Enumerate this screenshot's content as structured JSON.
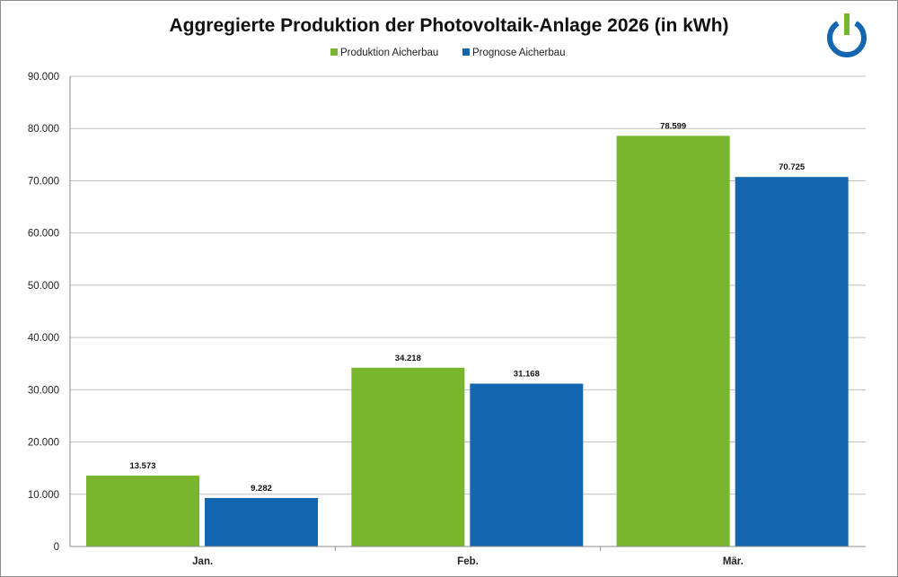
{
  "chart_data": {
    "type": "bar",
    "title": "Aggregierte Produktion der Photovoltaik-Anlage 2026 (in kWh)",
    "categories": [
      "Jan.",
      "Feb.",
      "Mär."
    ],
    "series": [
      {
        "name": "Produktion Aicherbau",
        "color": "#7ab52f",
        "values": [
          13573,
          34218,
          78599
        ],
        "labels": [
          "13.573",
          "34.218",
          "78.599"
        ]
      },
      {
        "name": "Prognose Aicherbau",
        "color": "#1466b1",
        "values": [
          9282,
          31168,
          70725
        ],
        "labels": [
          "9.282",
          "31.168",
          "70.725"
        ]
      }
    ],
    "ylim": [
      0,
      90000
    ],
    "yticks": [
      0,
      10000,
      20000,
      30000,
      40000,
      50000,
      60000,
      70000,
      80000,
      90000
    ],
    "ytick_labels": [
      "0",
      "10.000",
      "20.000",
      "30.000",
      "40.000",
      "50.000",
      "60.000",
      "70.000",
      "80.000",
      "90.000"
    ],
    "xlabel": "",
    "ylabel": "",
    "grid": true,
    "legend_position": "top-center"
  },
  "logo": {
    "icon": "power-icon",
    "ring_color": "#1466b1",
    "bar_color": "#7ab52f"
  }
}
